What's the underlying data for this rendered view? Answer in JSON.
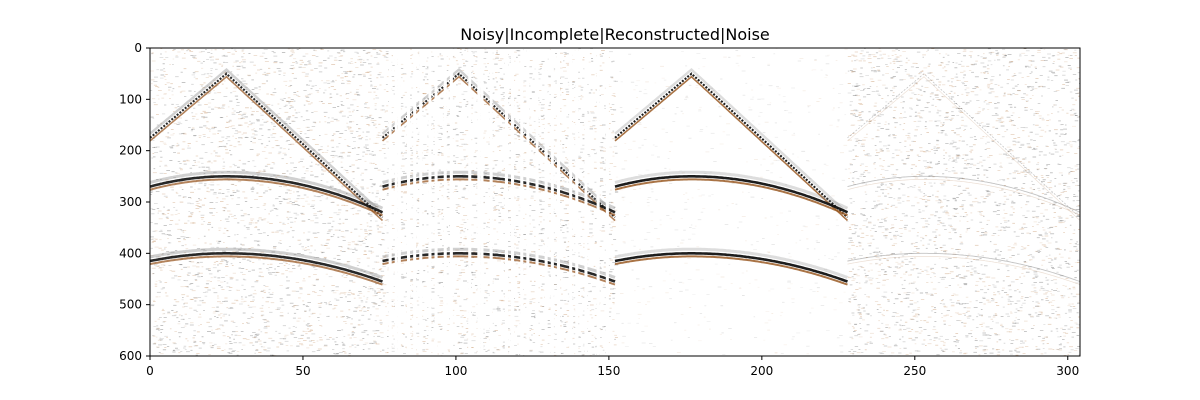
{
  "chart_data": {
    "type": "heatmap",
    "title": "Noisy|Incomplete|Reconstructed|Noise",
    "xlabel": "",
    "ylabel": "",
    "xlim": [
      0,
      304
    ],
    "ylim": [
      600,
      0
    ],
    "y_inverted": true,
    "grid": false,
    "legend": "none",
    "x_ticks": [
      0,
      50,
      100,
      150,
      200,
      250,
      300
    ],
    "y_ticks": [
      0,
      100,
      200,
      300,
      400,
      500,
      600
    ],
    "colormap": {
      "negative": "#000000",
      "zero": "#ffffff",
      "positive": "#8b4513"
    },
    "panels": [
      {
        "name": "Noisy",
        "x_range": [
          0,
          76
        ],
        "noise": "strong",
        "shown": "all traces"
      },
      {
        "name": "Incomplete",
        "x_range": [
          76,
          152
        ],
        "noise": "strong",
        "shown": "subset of traces (missing columns)"
      },
      {
        "name": "Reconstructed",
        "x_range": [
          152,
          228
        ],
        "noise": "weak",
        "shown": "all traces"
      },
      {
        "name": "Noise",
        "x_range": [
          228,
          304
        ],
        "noise": "strong",
        "shown": "residual"
      }
    ],
    "events": [
      {
        "shape": "linear-apex",
        "apex_x": 25,
        "apex_t": 50,
        "left_end_t": 175,
        "right_end_t": 330
      },
      {
        "shape": "hyperbolic",
        "apex_x": 25,
        "apex_t": 250,
        "left_end_t": 270,
        "right_end_t": 320
      },
      {
        "shape": "hyperbolic",
        "apex_x": 25,
        "apex_t": 400,
        "left_end_t": 415,
        "right_end_t": 455
      }
    ]
  }
}
